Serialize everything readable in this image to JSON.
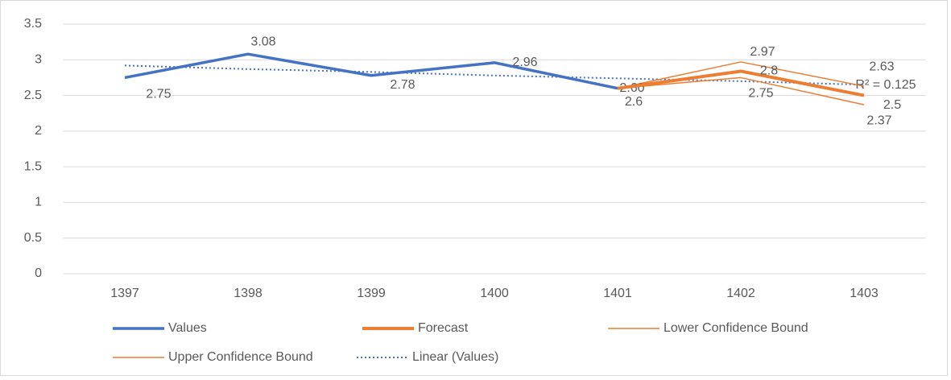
{
  "chart_data": {
    "type": "line",
    "categories": [
      "1397",
      "1398",
      "1399",
      "1400",
      "1401",
      "1402",
      "1403"
    ],
    "series": [
      {
        "name": "Values",
        "color": "#4472c4",
        "width": 3.5,
        "values": [
          2.75,
          3.08,
          2.78,
          2.96,
          2.6,
          null,
          null
        ],
        "value_labels": [
          "2.75",
          "3.08",
          "2.78",
          "2.96",
          "2.60",
          null,
          null
        ]
      },
      {
        "name": "Forecast",
        "color": "#ed7d31",
        "width": 4,
        "values": [
          null,
          null,
          null,
          null,
          2.6,
          2.84,
          2.5
        ],
        "value_labels": [
          null,
          null,
          null,
          null,
          "2.6",
          "2.8",
          "2.5"
        ]
      },
      {
        "name": "Lower Confidence Bound",
        "color": "#ed7d31",
        "width": 1.5,
        "values": [
          null,
          null,
          null,
          null,
          2.6,
          2.75,
          2.37
        ],
        "value_labels": [
          null,
          null,
          null,
          null,
          null,
          "2.75",
          "2.37"
        ]
      },
      {
        "name": "Upper Confidence Bound",
        "color": "#ed7d31",
        "width": 1.5,
        "values": [
          null,
          null,
          null,
          null,
          2.6,
          2.97,
          2.63
        ],
        "value_labels": [
          null,
          null,
          null,
          null,
          null,
          "2.97",
          "2.63"
        ]
      },
      {
        "name": "Linear (Values)",
        "color": "#4472c4",
        "width": 2,
        "dashed": true,
        "values": [
          2.92,
          2.87,
          2.83,
          2.78,
          2.74,
          2.7,
          2.65
        ]
      }
    ],
    "annotation": "R² = 0.125",
    "ylim": [
      0,
      3.5
    ],
    "yticks": [
      0,
      0.5,
      1,
      1.5,
      2,
      2.5,
      3,
      3.5
    ],
    "grid": true,
    "legend": "bottom"
  }
}
